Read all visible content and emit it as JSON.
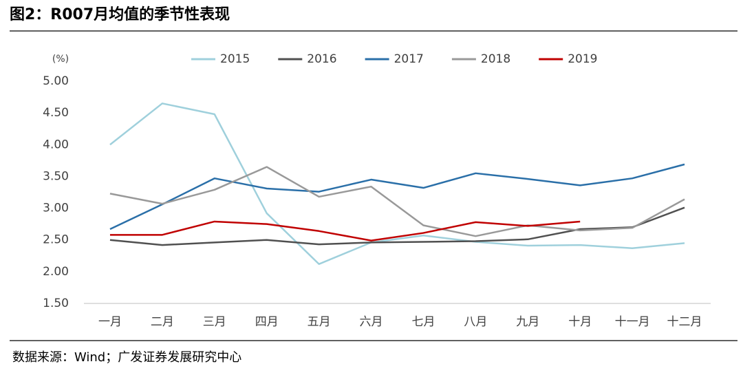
{
  "chart_data": {
    "type": "line",
    "title": "图2：R007月均值的季节性表现",
    "y_label": "(%)",
    "source": "数据来源：Wind；广发证券发展研究中心",
    "categories": [
      "一月",
      "二月",
      "三月",
      "四月",
      "五月",
      "六月",
      "七月",
      "八月",
      "九月",
      "十月",
      "十一月",
      "十二月"
    ],
    "series": [
      {
        "name": "2015",
        "color": "#9fd0dc",
        "values": [
          4.0,
          4.65,
          4.48,
          2.92,
          2.12,
          2.46,
          2.57,
          2.47,
          2.41,
          2.42,
          2.37,
          2.45
        ]
      },
      {
        "name": "2016",
        "color": "#505050",
        "values": [
          2.5,
          2.42,
          2.46,
          2.5,
          2.43,
          2.46,
          2.47,
          2.48,
          2.51,
          2.67,
          2.7,
          3.01
        ]
      },
      {
        "name": "2017",
        "color": "#2a6fa8",
        "values": [
          2.67,
          3.06,
          3.47,
          3.31,
          3.26,
          3.45,
          3.32,
          3.55,
          3.46,
          3.36,
          3.47,
          3.69
        ]
      },
      {
        "name": "2018",
        "color": "#999999",
        "values": [
          3.23,
          3.07,
          3.29,
          3.65,
          3.18,
          3.34,
          2.73,
          2.56,
          2.73,
          2.65,
          2.69,
          3.14
        ]
      },
      {
        "name": "2019",
        "color": "#c00000",
        "values": [
          2.58,
          2.58,
          2.79,
          2.75,
          2.64,
          2.49,
          2.61,
          2.78,
          2.72,
          2.79,
          null,
          null
        ]
      }
    ],
    "ylim": [
      1.5,
      5.0
    ],
    "yticks": [
      {
        "value": 1.5,
        "label": "1.50"
      },
      {
        "value": 2.0,
        "label": "2.00"
      },
      {
        "value": 2.5,
        "label": "2.50"
      },
      {
        "value": 3.0,
        "label": "3.00"
      },
      {
        "value": 3.5,
        "label": "3.50"
      },
      {
        "value": 4.0,
        "label": "4.00"
      },
      {
        "value": 4.5,
        "label": "4.50"
      },
      {
        "value": 5.0,
        "label": "5.00"
      }
    ],
    "legend": "top",
    "grid": false
  }
}
